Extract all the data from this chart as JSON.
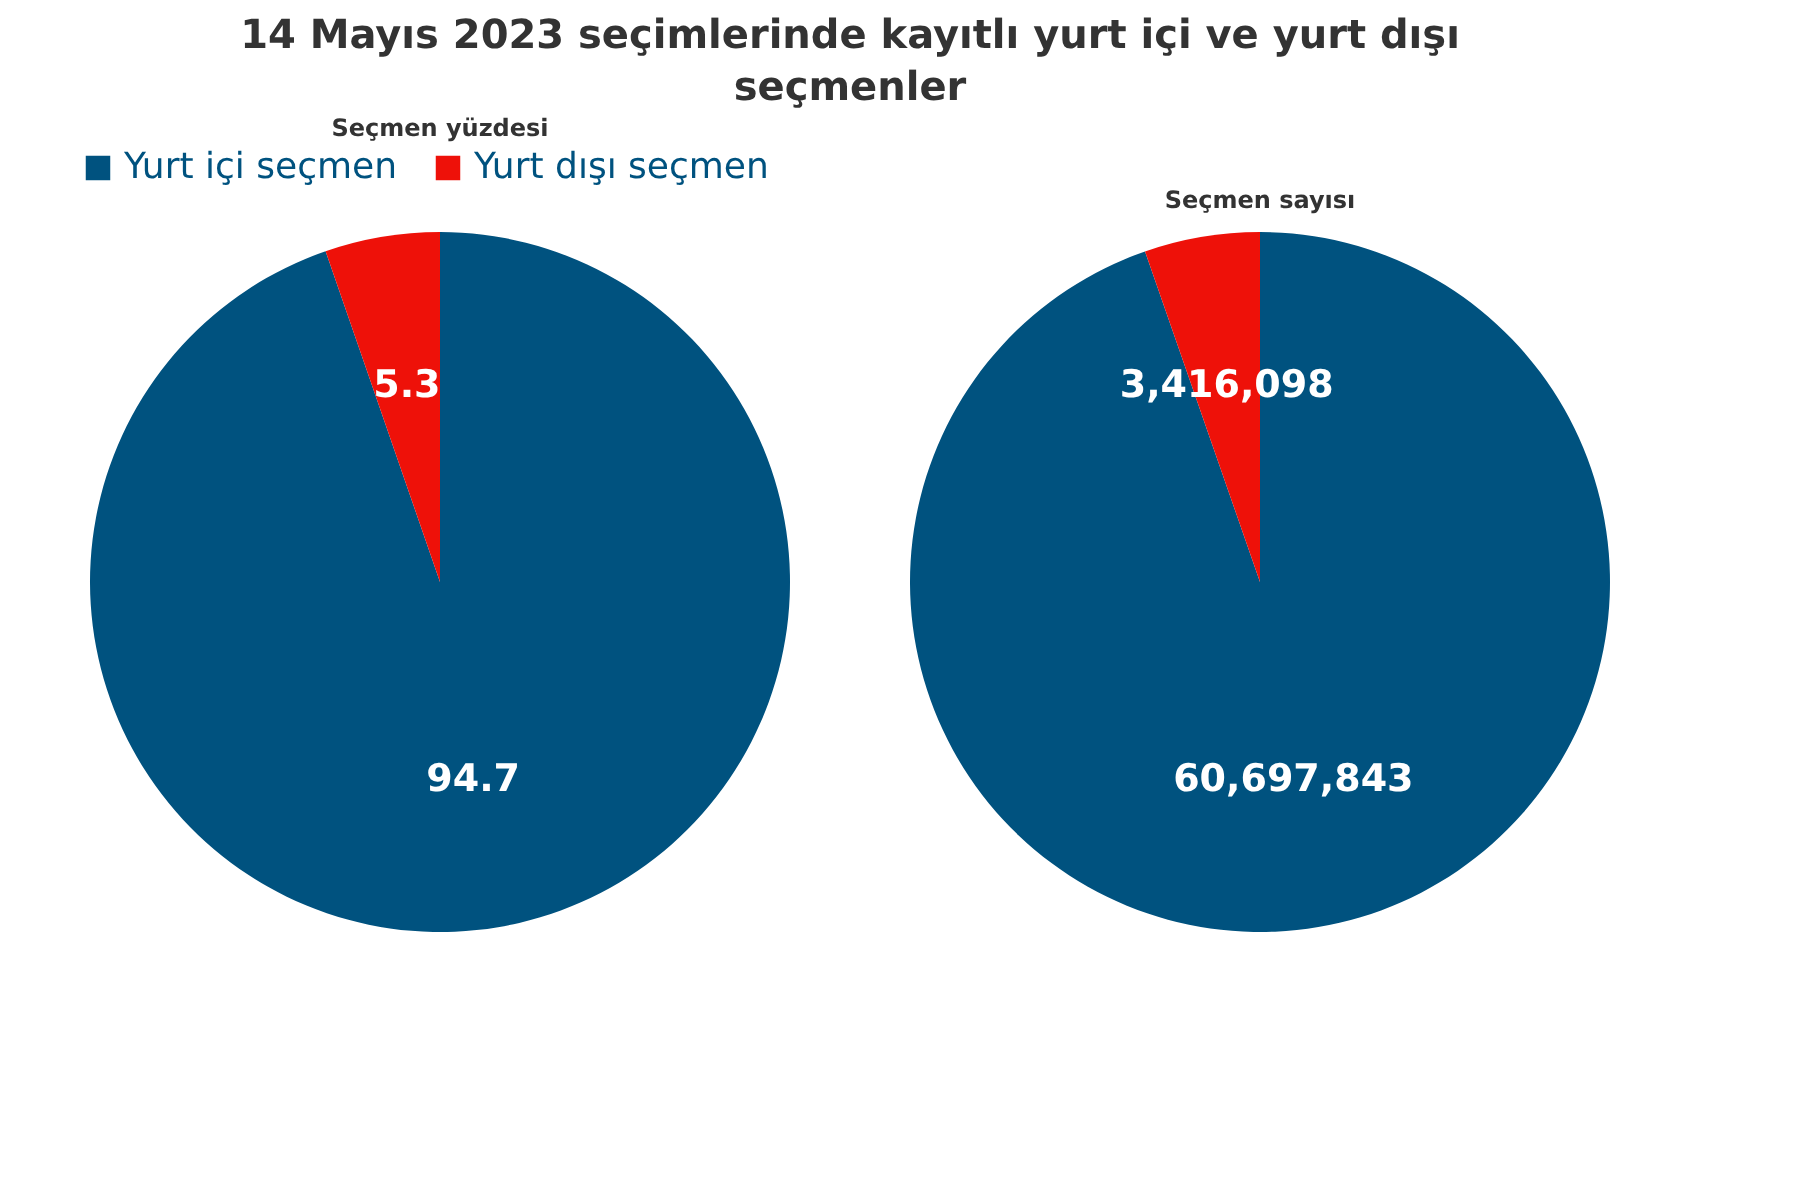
{
  "chart_data": [
    {
      "type": "pie",
      "title": "14 Mayıs 2023 seçimlerinde kayıtlı yurt içi ve yurt dışı seçmenler",
      "subtitle": "Seçmen yüzdesi",
      "categories": [
        "Yurt içi seçmen",
        "Yurt dışı seçmen"
      ],
      "values": [
        94.7,
        5.3
      ],
      "colors": [
        "#00527f",
        "#ee1109"
      ],
      "data_labels": true,
      "legend": "top"
    },
    {
      "type": "pie",
      "subtitle": "Seçmen sayısı",
      "categories": [
        null,
        null
      ],
      "values": [
        60697843,
        3416098
      ],
      "value_labels": [
        "60,697,843",
        "3,416,098"
      ],
      "colors": [
        "#00527f",
        "#ee1109"
      ]
    }
  ]
}
